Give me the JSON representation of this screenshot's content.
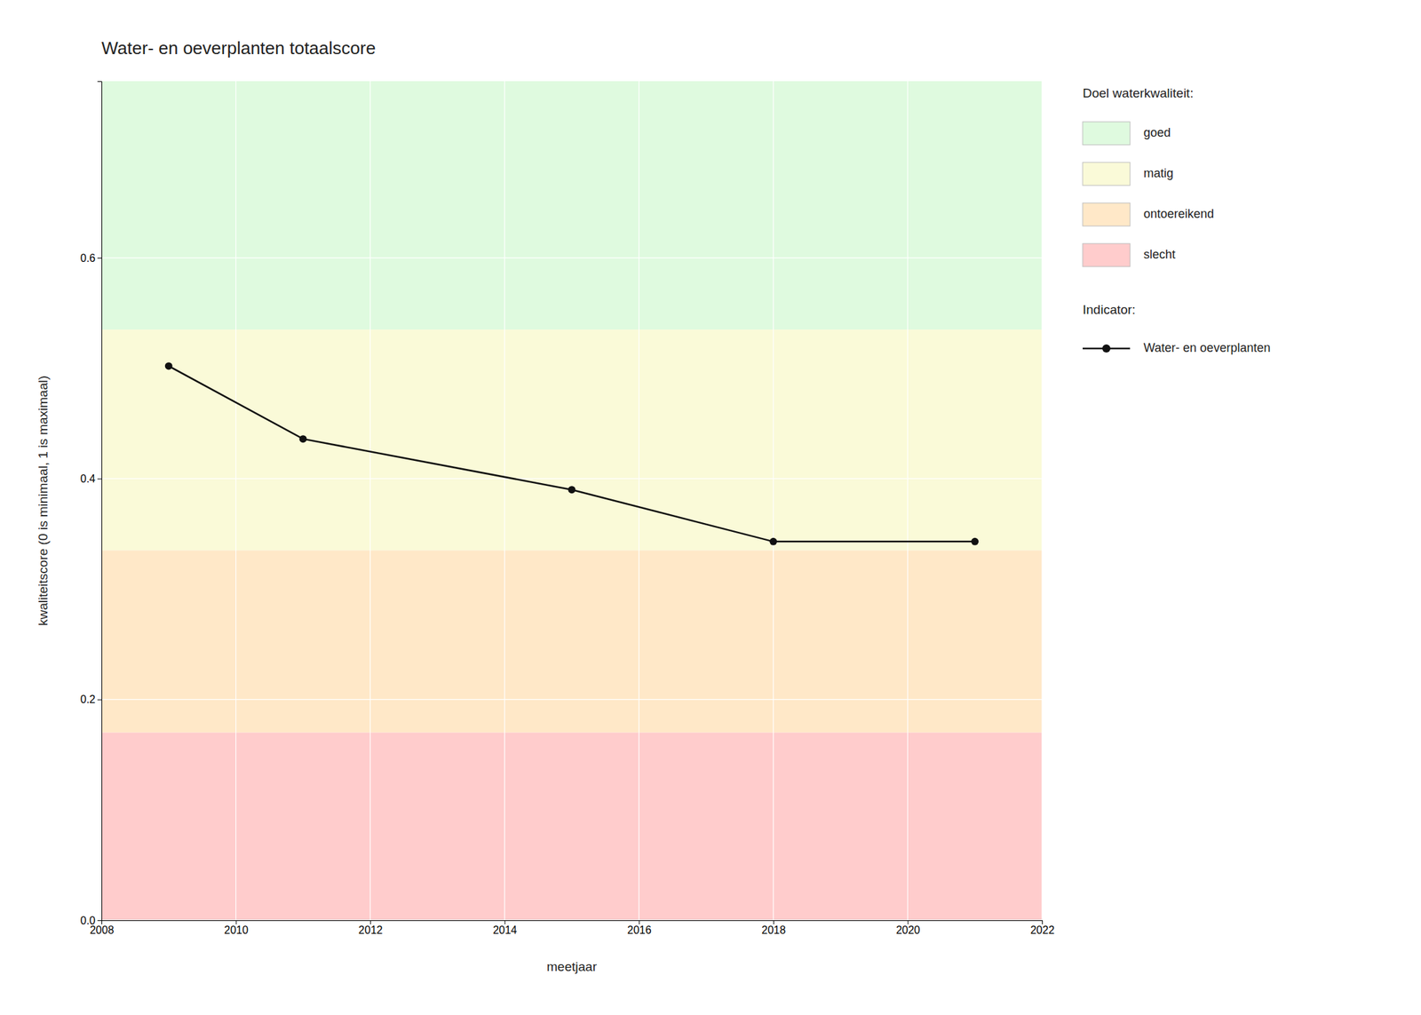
{
  "chart_data": {
    "type": "line",
    "title": "Water- en oeverplanten totaalscore",
    "x_label": "meetjaar",
    "y_label": "kwaliteitscore (0 is minimaal, 1 is maximaal)",
    "x": [
      2009,
      2011,
      2015,
      2018,
      2021
    ],
    "series": [
      {
        "name": "Water- en oeverplanten",
        "color": "#111111",
        "marker": "circle",
        "values": [
          0.502,
          0.436,
          0.39,
          0.343,
          0.343
        ]
      }
    ],
    "xlim": [
      2008,
      2022
    ],
    "ylim": [
      0.0,
      0.76
    ],
    "xticks": [
      2008,
      2010,
      2012,
      2014,
      2016,
      2018,
      2020,
      2022
    ],
    "yticks": [
      {
        "value": 0.0,
        "label": "0.0"
      },
      0.2,
      0.4,
      0.6
    ],
    "grid": true,
    "legend": "right",
    "zones_title": "Doel waterkwaliteit:",
    "series_title": "Indicator:",
    "zones": [
      {
        "name": "goed",
        "color": "#DFFADF",
        "ymin": 0.535,
        "ymax": 0.76
      },
      {
        "name": "matig",
        "color": "#FAFAD8",
        "ymin": 0.335,
        "ymax": 0.535
      },
      {
        "name": "ontoereikend",
        "color": "#FFE8C8",
        "ymin": 0.17,
        "ymax": 0.335
      },
      {
        "name": "slecht",
        "color": "#FFCCCC",
        "ymin": 0.0,
        "ymax": 0.17
      }
    ]
  }
}
